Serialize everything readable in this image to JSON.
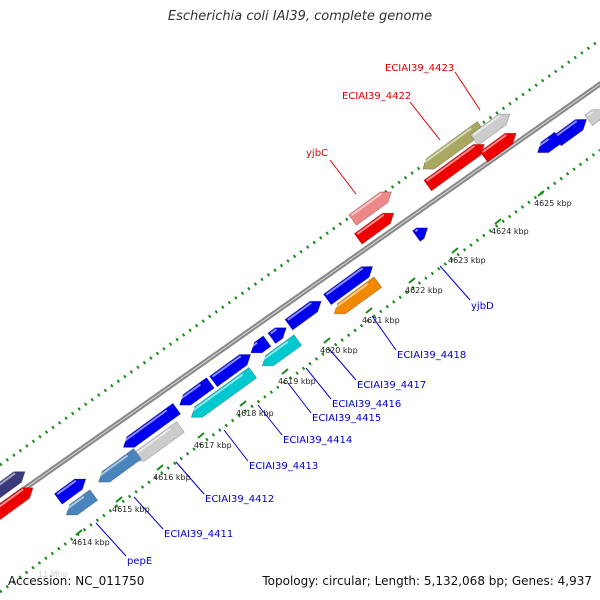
{
  "title": "Escherichia coli IAI39, complete genome",
  "footer": {
    "accession": "Accession: NC_011750",
    "summary": "Topology: circular; Length: 5,132,068 bp; Genes: 4,937",
    "scale_note": "11 Mbp"
  },
  "colors": {
    "backbone": "#7a7a7a",
    "tick_dots": "#1a8a1a",
    "label_top": "#dd0000",
    "label_bottom": "#0000cc",
    "kbp_text": "#222222"
  },
  "kbp_ticks": [
    "4614 kbp",
    "4615 kbp",
    "4616 kbp",
    "4617 kbp",
    "4618 kbp",
    "4619 kbp",
    "4620 kbp",
    "4621 kbp",
    "4622 kbp",
    "4623 kbp",
    "4624 kbp",
    "4625 kbp"
  ],
  "gene_labels_top": [
    "ECIAI39_4423",
    "ECIAI39_4422",
    "yjbC"
  ],
  "gene_labels_bottom": [
    "yjbD",
    "ECIAI39_4418",
    "ECIAI39_4417",
    "ECIAI39_4416",
    "ECIAI39_4415",
    "ECIAI39_4414",
    "ECIAI39_4413",
    "ECIAI39_4412",
    "ECIAI39_4411",
    "pepE"
  ],
  "feature_colors": {
    "blue": "#0000ee",
    "red": "#ee0000",
    "pink": "#ee8888",
    "olive": "#a8a860",
    "gray": "#cccccc",
    "cyan": "#00c8d0",
    "steel": "#4a84bc",
    "orange": "#f08800",
    "navy": "#3a3a7c"
  }
}
